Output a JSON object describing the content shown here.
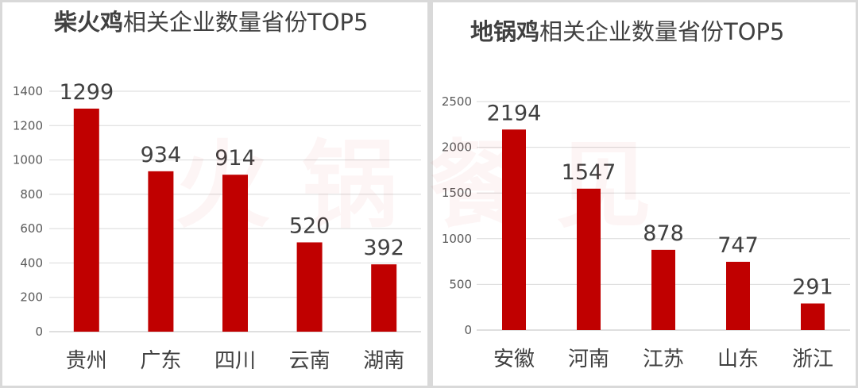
{
  "watermark": "火锅餐见",
  "colors": {
    "bar": "#c00000",
    "text": "#404040",
    "axis": "#595959",
    "grid": "#d9d9d9"
  },
  "chart_data": [
    {
      "type": "bar",
      "title_bold": "柴火鸡",
      "title_rest": "相关企业数量省份TOP5",
      "categories": [
        "贵州",
        "广东",
        "四川",
        "云南",
        "湖南"
      ],
      "values": [
        1299,
        934,
        914,
        520,
        392
      ],
      "data_labels": [
        "1299",
        "934",
        "914",
        "520",
        "392"
      ],
      "yticks": [
        "0",
        "200",
        "400",
        "600",
        "800",
        "1000",
        "1200",
        "1400"
      ],
      "ylim": [
        0,
        1400
      ],
      "grid": true
    },
    {
      "type": "bar",
      "title_bold": "地锅鸡",
      "title_rest": "相关企业数量省份TOP5",
      "categories": [
        "安徽",
        "河南",
        "江苏",
        "山东",
        "浙江"
      ],
      "values": [
        2194,
        1547,
        878,
        747,
        291
      ],
      "data_labels": [
        "2194",
        "1547",
        "878",
        "747",
        "291"
      ],
      "yticks": [
        "0",
        "500",
        "1000",
        "1500",
        "2000",
        "2500"
      ],
      "ylim": [
        0,
        2500
      ],
      "grid": true
    }
  ]
}
